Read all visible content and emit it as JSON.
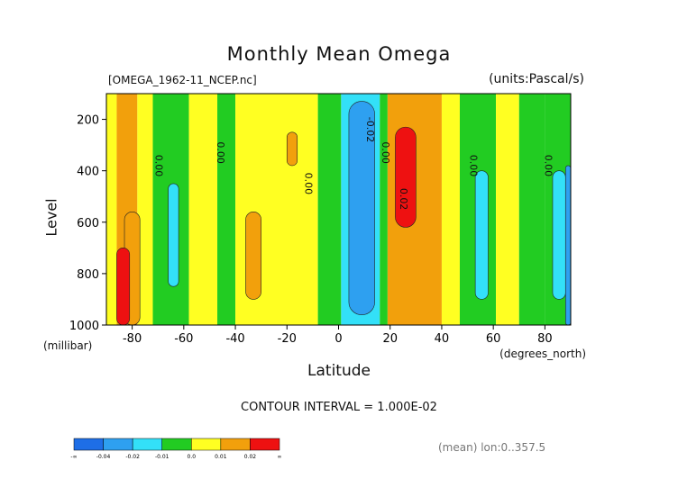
{
  "chart_data": {
    "type": "heatmap",
    "title": "Monthly Mean Omega",
    "file_label": "[OMEGA_1962-11_NCEP.nc]",
    "units_label": "(units:Pascal/s)",
    "xlabel": "Latitude",
    "x_unit_label": "(degrees_north)",
    "ylabel": "Level",
    "y_unit_label": "(millibar)",
    "xlim": [
      -90,
      90
    ],
    "ylim": [
      1000,
      100
    ],
    "x_ticks": [
      "-80",
      "-60",
      "-40",
      "-20",
      "0",
      "20",
      "40",
      "60",
      "80"
    ],
    "y_ticks": [
      "200",
      "400",
      "600",
      "800",
      "1000"
    ],
    "contour_interval_label": "CONTOUR INTERVAL = 1.000E-02",
    "footnote": "(mean) lon:0..357.5",
    "contour_labels": [
      {
        "text": "0.00",
        "lat": -71,
        "level": 380
      },
      {
        "text": "0.00",
        "lat": -47,
        "level": 330
      },
      {
        "text": "0.00",
        "lat": -13,
        "level": 450
      },
      {
        "text": "-0.02",
        "lat": 11,
        "level": 240
      },
      {
        "text": "0.00",
        "lat": 17,
        "level": 330
      },
      {
        "text": "0.02",
        "lat": 24,
        "level": 510
      },
      {
        "text": "0.00",
        "lat": 51,
        "level": 380
      },
      {
        "text": "0.00",
        "lat": 80,
        "level": 380
      }
    ],
    "colorbar": {
      "labels": [
        "-∞",
        "-0.04",
        "-0.02",
        "-0.01",
        "0.0",
        "0.01",
        "0.02",
        "∞"
      ],
      "colors": [
        "#1e6ee6",
        "#2ea0f0",
        "#33e0f8",
        "#22cc22",
        "#ffff22",
        "#f2a00c",
        "#ee1111"
      ]
    },
    "bands": [
      {
        "lat": [
          -90,
          -86
        ],
        "value": 0.005
      },
      {
        "lat": [
          -86,
          -78
        ],
        "value": 0.012
      },
      {
        "lat": [
          -78,
          -72
        ],
        "value": 0.004
      },
      {
        "lat": [
          -72,
          -58
        ],
        "value": -0.003
      },
      {
        "lat": [
          -58,
          -47
        ],
        "value": 0.004
      },
      {
        "lat": [
          -47,
          -40
        ],
        "value": -0.002
      },
      {
        "lat": [
          -40,
          -18
        ],
        "value": 0.004
      },
      {
        "lat": [
          -18,
          -8
        ],
        "value": 0.004
      },
      {
        "lat": [
          -8,
          1
        ],
        "value": -0.004
      },
      {
        "lat": [
          1,
          16
        ],
        "value": -0.016
      },
      {
        "lat": [
          16,
          19
        ],
        "value": -0.004
      },
      {
        "lat": [
          19,
          40
        ],
        "value": 0.012
      },
      {
        "lat": [
          40,
          47
        ],
        "value": 0.004
      },
      {
        "lat": [
          47,
          61
        ],
        "value": -0.003
      },
      {
        "lat": [
          61,
          70
        ],
        "value": 0.004
      },
      {
        "lat": [
          70,
          80
        ],
        "value": -0.002
      },
      {
        "lat": [
          80,
          90
        ],
        "value": -0.006
      }
    ],
    "blobs": [
      {
        "lat": [
          -83,
          -77
        ],
        "level": [
          560,
          1000
        ],
        "value": 0.012
      },
      {
        "lat": [
          -86,
          -81
        ],
        "level": [
          700,
          1000
        ],
        "value": 0.03
      },
      {
        "lat": [
          -66,
          -62
        ],
        "level": [
          450,
          850
        ],
        "value": -0.012
      },
      {
        "lat": [
          -36,
          -30
        ],
        "level": [
          560,
          900
        ],
        "value": 0.012
      },
      {
        "lat": [
          -20,
          -16
        ],
        "level": [
          250,
          380
        ],
        "value": 0.012
      },
      {
        "lat": [
          4,
          14
        ],
        "level": [
          130,
          960
        ],
        "value": -0.03
      },
      {
        "lat": [
          22,
          30
        ],
        "level": [
          230,
          620
        ],
        "value": 0.03
      },
      {
        "lat": [
          53,
          58
        ],
        "level": [
          400,
          900
        ],
        "value": -0.012
      },
      {
        "lat": [
          83,
          88
        ],
        "level": [
          400,
          900
        ],
        "value": -0.012
      },
      {
        "lat": [
          88,
          90
        ],
        "level": [
          380,
          1000
        ],
        "value": -0.025
      }
    ]
  }
}
